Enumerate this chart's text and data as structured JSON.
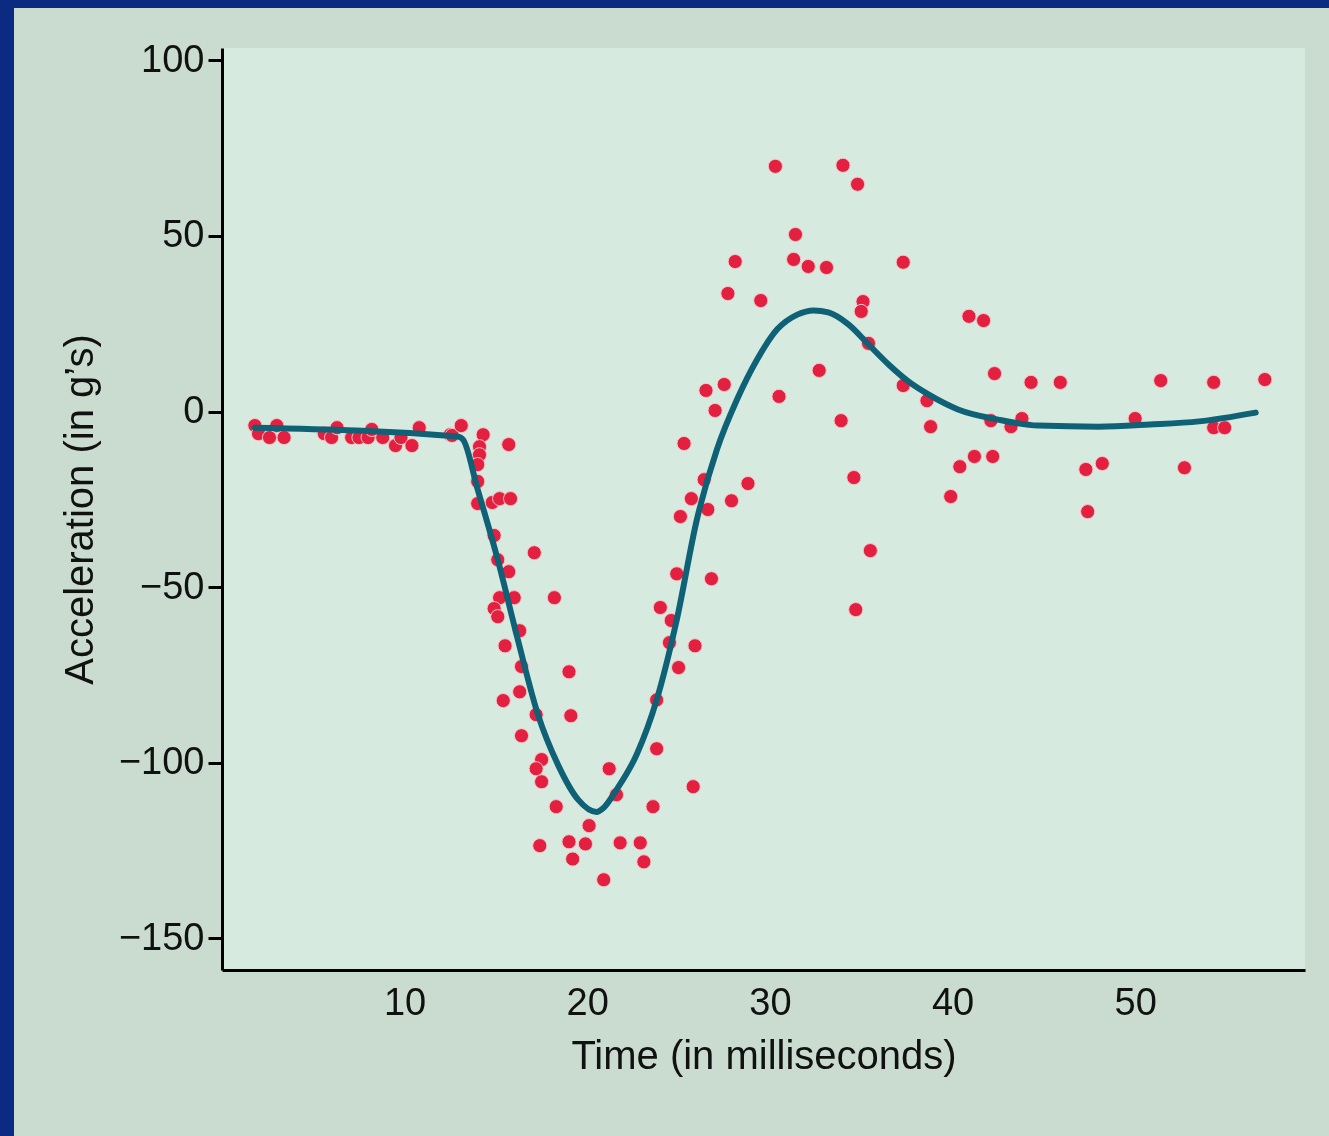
{
  "chart_data": {
    "type": "scatter",
    "xlabel": "Time (in milliseconds)",
    "ylabel": "Acceleration (in g’s)",
    "xlim": [
      0,
      59.3
    ],
    "ylim": [
      -159,
      103.5
    ],
    "xticks": [
      10,
      20,
      30,
      40,
      50
    ],
    "yticks": [
      -150,
      -100,
      -50,
      0,
      50,
      100
    ],
    "grid": false,
    "series": [
      {
        "marker": "circle",
        "color": "#e3203f",
        "x": [
          1.8,
          2.0,
          2.6,
          3.0,
          3.4,
          5.6,
          6.0,
          6.3,
          7.1,
          7.5,
          8.0,
          8.2,
          8.8,
          9.5,
          9.8,
          10.4,
          10.8,
          12.5,
          12.6,
          13.1,
          14.3,
          15.7,
          14.1,
          14.1,
          14.0,
          14.0,
          14.0,
          14.8,
          15.2,
          15.8,
          14.9,
          17.1,
          15.1,
          15.7,
          15.2,
          16.0,
          18.2,
          14.9,
          15.1,
          16.3,
          15.5,
          16.4,
          19.0,
          16.3,
          15.4,
          17.2,
          19.1,
          16.4,
          17.5,
          17.2,
          17.5,
          18.3,
          20.1,
          17.4,
          19.0,
          19.9,
          19.2,
          20.9,
          21.2,
          21.6,
          21.8,
          22.9,
          23.1,
          23.6,
          25.8,
          23.8,
          23.8,
          25.0,
          24.5,
          25.9,
          24.6,
          24.0,
          24.9,
          26.8,
          25.1,
          25.7,
          26.6,
          27.9,
          26.4,
          25.3,
          27.0,
          30.3,
          34.0,
          34.8,
          31.4,
          28.1,
          31.3,
          32.1,
          33.1,
          37.3,
          27.7,
          29.5,
          35.1,
          35.0,
          35.4,
          32.7,
          27.5,
          26.5,
          30.5,
          37.3,
          38.6,
          33.9,
          38.8,
          34.6,
          28.8,
          35.5,
          34.7,
          40.4,
          39.9,
          40.9,
          41.7,
          41.2,
          42.1,
          42.2,
          42.3,
          43.2,
          43.8,
          44.3,
          45.9,
          47.3,
          47.4,
          48.2,
          50.0,
          51.4,
          52.7,
          54.3,
          54.3,
          54.9,
          57.1
        ],
        "values": [
          -4.0,
          -6.3,
          -7.4,
          -4.0,
          -7.4,
          -6.3,
          -7.4,
          -4.6,
          -7.4,
          -7.4,
          -7.4,
          -5.1,
          -7.4,
          -9.7,
          -7.4,
          -9.7,
          -4.6,
          -6.6,
          -6.8,
          -4.0,
          -6.6,
          -9.4,
          -10.0,
          -12.3,
          -15.1,
          -19.9,
          -26.2,
          -25.9,
          -24.8,
          -24.8,
          -35.3,
          -40.2,
          -42.2,
          -45.6,
          -53.0,
          -53.0,
          -53.0,
          -56.1,
          -58.4,
          -62.4,
          -66.7,
          -72.6,
          -74.1,
          -79.8,
          -82.3,
          -86.3,
          -86.6,
          -92.3,
          -99.1,
          -101.7,
          -105.4,
          -112.5,
          -117.9,
          -123.6,
          -122.5,
          -123.1,
          -127.4,
          -133.3,
          -101.7,
          -109.1,
          -122.8,
          -122.8,
          -128.2,
          -112.5,
          -106.8,
          -96.0,
          -82.1,
          -72.9,
          -65.8,
          -66.7,
          -59.5,
          -55.8,
          -46.2,
          -47.6,
          -29.9,
          -24.8,
          -27.9,
          -25.4,
          -19.4,
          -9.1,
          0.3,
          69.8,
          70.1,
          64.7,
          50.4,
          42.7,
          43.3,
          41.3,
          41.0,
          42.5,
          33.6,
          31.6,
          31.3,
          28.5,
          19.4,
          11.7,
          7.7,
          6.0,
          4.3,
          7.4,
          3.1,
          -2.6,
          -4.3,
          -18.8,
          -20.5,
          -39.6,
          -56.4,
          -15.7,
          -24.2,
          27.1,
          25.9,
          -12.8,
          -2.6,
          -12.8,
          10.8,
          -4.3,
          -2.0,
          8.3,
          8.3,
          -16.5,
          -28.5,
          -14.8,
          -2.0,
          8.8,
          -16.0,
          8.3,
          -4.6,
          -4.6,
          9.1
        ]
      },
      {
        "type": "line",
        "marker": "none",
        "color": "#0f6176",
        "line_style": "solid",
        "x": [
          1.8,
          12.9,
          13.2,
          14.0,
          15.1,
          16.2,
          17.3,
          18.4,
          19.5,
          20.5,
          20.9,
          21.6,
          22.7,
          23.8,
          24.9,
          26.0,
          27.1,
          28.2,
          29.3,
          30.4,
          31.5,
          32.4,
          33.2,
          34.3,
          35.4,
          36.5,
          37.6,
          38.7,
          40.3,
          42.5,
          44.7,
          48.0,
          50.8,
          53.5,
          56.6
        ],
        "values": [
          -4.6,
          -7.1,
          -8.0,
          -22.2,
          -42.2,
          -65.0,
          -86.3,
          -100.6,
          -110.5,
          -114.0,
          -112.8,
          -107.7,
          -97.7,
          -82.1,
          -59.3,
          -30.8,
          -10.8,
          3.4,
          14.8,
          23.4,
          27.6,
          28.8,
          28.2,
          24.8,
          19.1,
          13.4,
          8.5,
          4.8,
          0.6,
          -2.3,
          -4.0,
          -4.3,
          -3.7,
          -2.8,
          -0.3
        ]
      }
    ]
  }
}
